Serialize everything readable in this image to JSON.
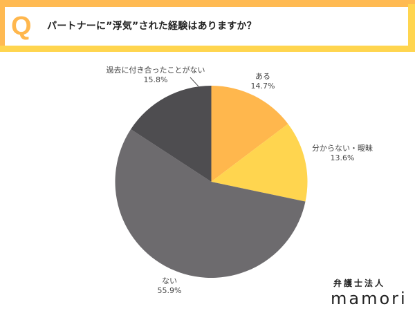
{
  "header": {
    "q_label": "Q",
    "question": "パートナーに”浮気”された経験はありますか？",
    "colors": {
      "frame_top_left": "#FFBA52",
      "frame_bottom_right": "#FFD54F",
      "q_letter": "#FFB74D"
    }
  },
  "chart_data": {
    "type": "pie",
    "title": "パートナーに”浮気”された経験はありますか？",
    "start_angle": "12 o'clock, clockwise",
    "categories": [
      "ある",
      "分からない・曖昧",
      "ない",
      "過去に付き合ったことがない"
    ],
    "values": [
      14.7,
      13.6,
      55.9,
      15.8
    ],
    "unit": "%",
    "colors": [
      "#FFB74D",
      "#FFD54F",
      "#6D6B6E",
      "#4E4D50"
    ],
    "labels": [
      {
        "name": "ある",
        "value": "14.7%"
      },
      {
        "name": "分からない・曖昧",
        "value": "13.6%"
      },
      {
        "name": "ない",
        "value": "55.9%"
      },
      {
        "name": "過去に付き合ったことがない",
        "value": "15.8%"
      }
    ],
    "legend": "none (direct labels)"
  },
  "brand": {
    "sub": "弁護士法人",
    "main": "mamori"
  }
}
